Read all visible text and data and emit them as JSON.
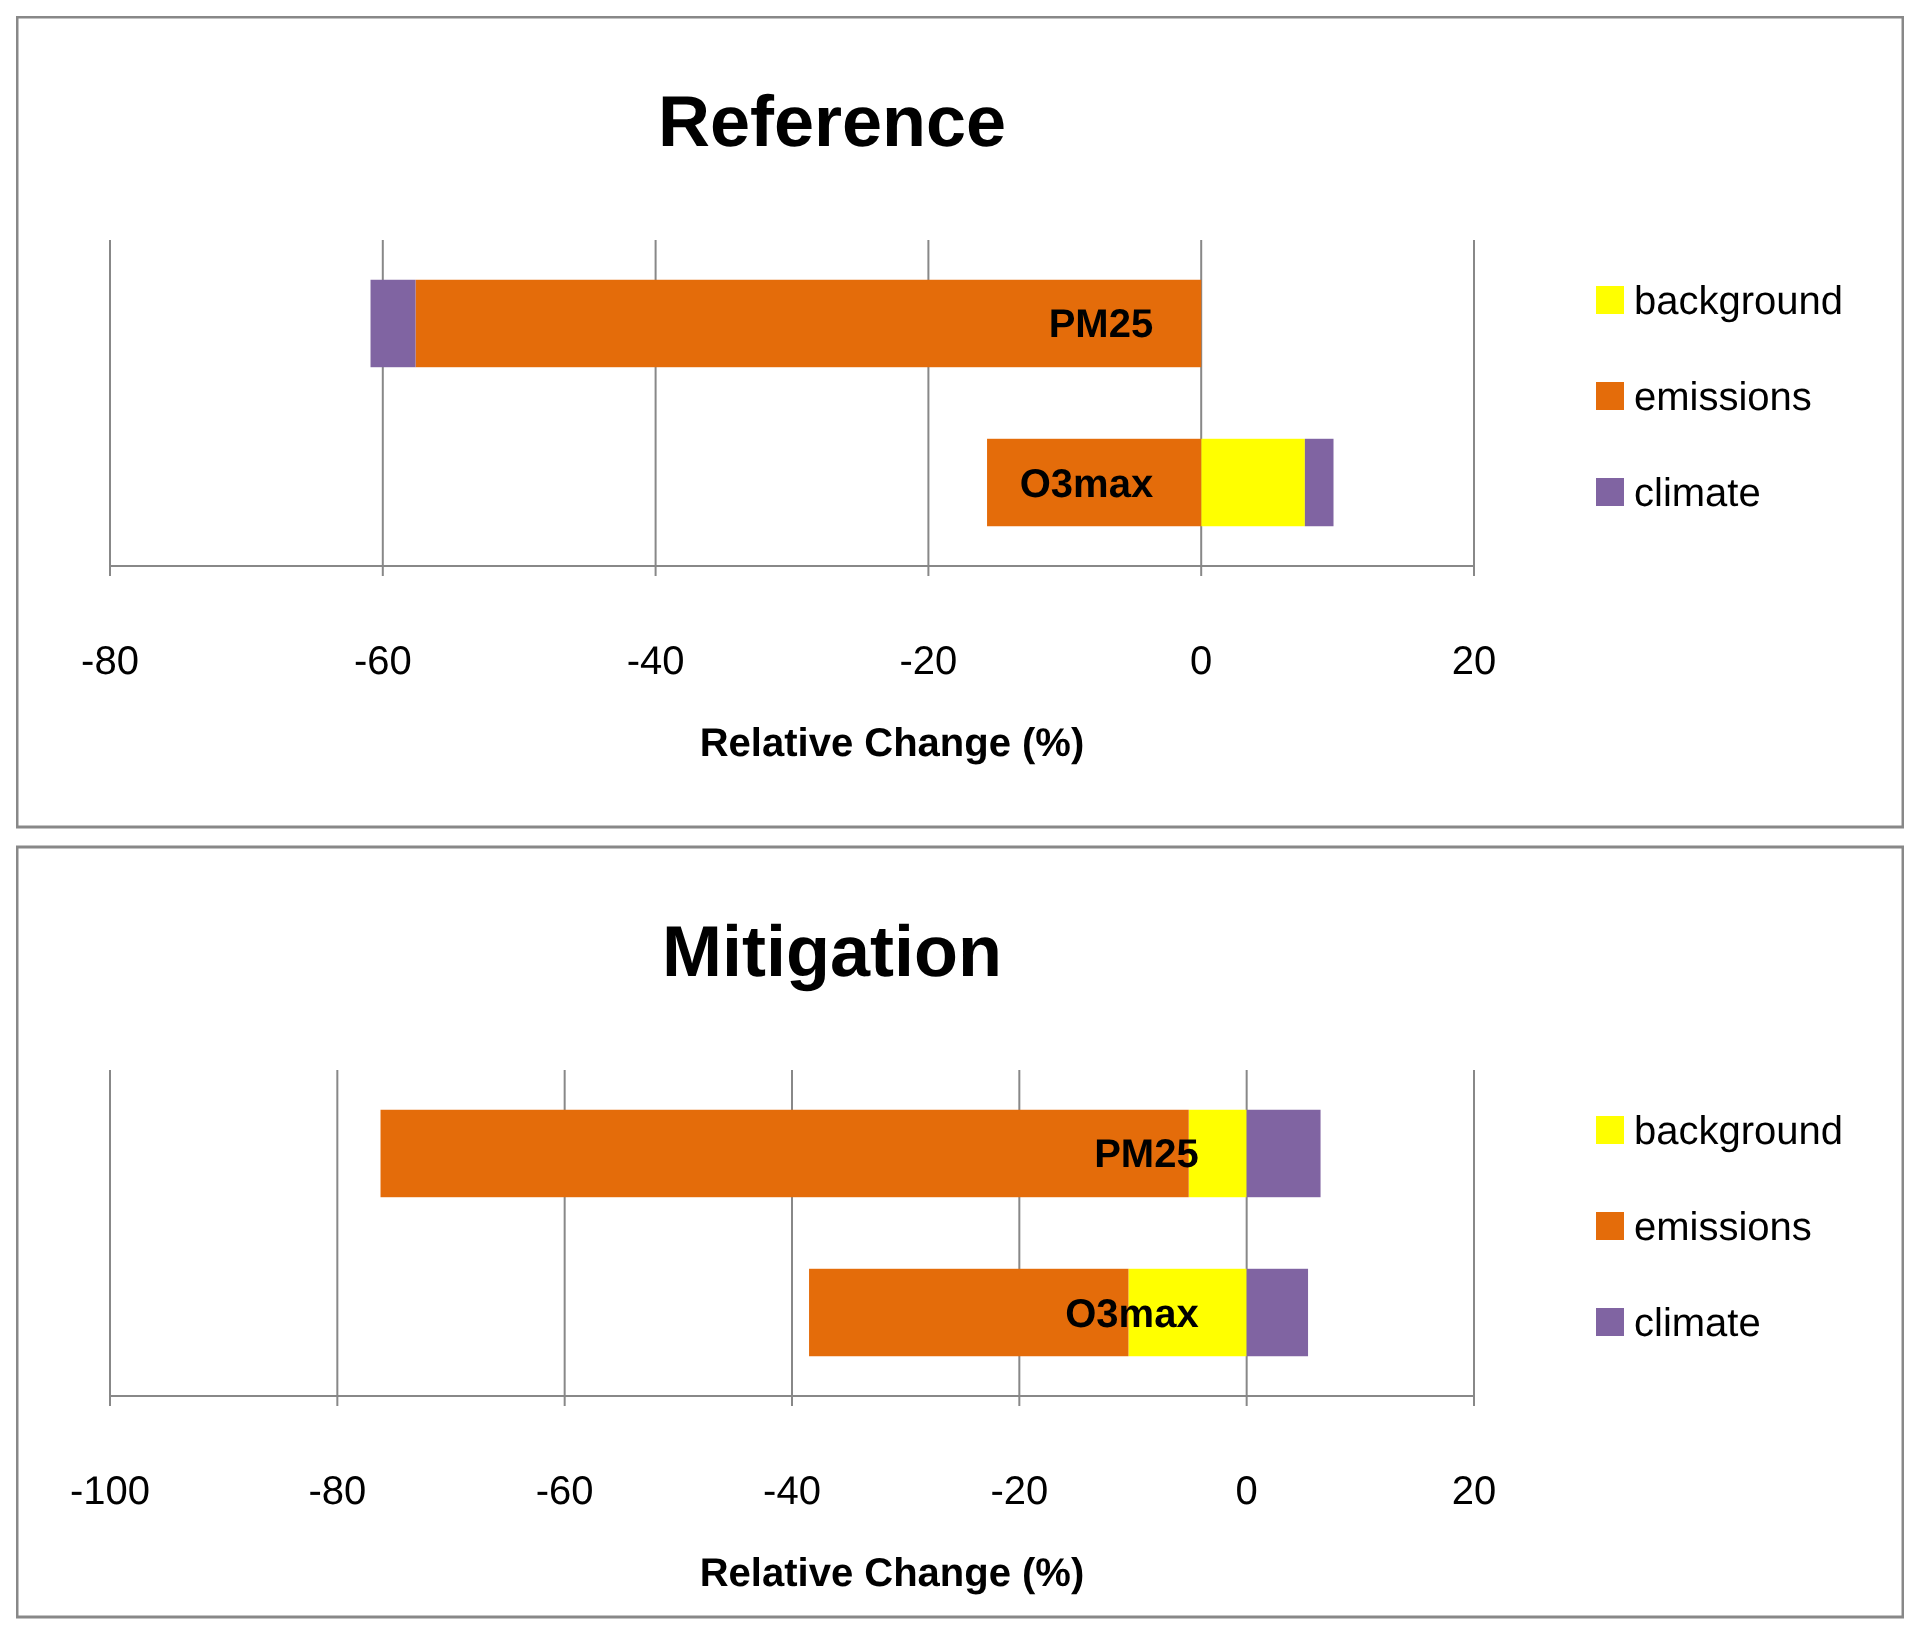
{
  "chart_data": [
    {
      "type": "bar",
      "title": "Reference",
      "xlabel": "Relative Change (%)",
      "orientation": "horizontal",
      "stacked": true,
      "categories": [
        "PM25",
        "O3max"
      ],
      "series": [
        {
          "name": "background",
          "color": "#ffff00",
          "values": [
            0,
            7.6
          ]
        },
        {
          "name": "emissions",
          "color": "#e46c0a",
          "values": [
            -57.6,
            -15.7
          ]
        },
        {
          "name": "climate",
          "color": "#8064a2",
          "values": [
            -3.3,
            2.1
          ]
        }
      ],
      "xlim": [
        -80,
        20
      ],
      "xticks": [
        -80,
        -60,
        -40,
        -20,
        0,
        20
      ],
      "grid": "x",
      "legend": "right"
    },
    {
      "type": "bar",
      "title": "Mitigation",
      "xlabel": "Relative Change (%)",
      "orientation": "horizontal",
      "stacked": true,
      "categories": [
        "PM25",
        "O3max"
      ],
      "series": [
        {
          "name": "background",
          "color": "#ffff00",
          "values": [
            -5.1,
            -10.4
          ]
        },
        {
          "name": "emissions",
          "color": "#e46c0a",
          "values": [
            -71.1,
            -28.1
          ]
        },
        {
          "name": "climate",
          "color": "#8064a2",
          "values": [
            6.5,
            5.4
          ]
        }
      ],
      "xlim": [
        -100,
        20
      ],
      "xticks": [
        -100,
        -80,
        -60,
        -40,
        -20,
        0,
        20
      ],
      "grid": "x",
      "legend": "right"
    }
  ]
}
